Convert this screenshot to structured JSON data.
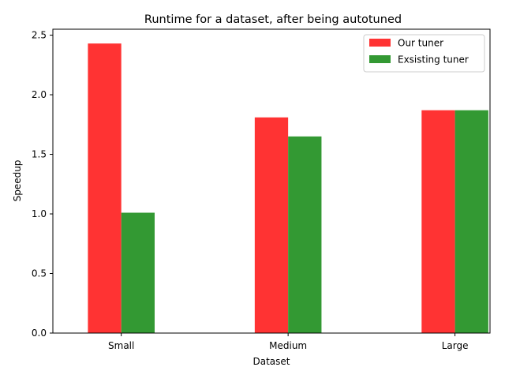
{
  "chart_data": {
    "type": "bar",
    "title": "Runtime for a dataset, after being autotuned",
    "xlabel": "Dataset",
    "ylabel": "Speedup",
    "categories": [
      "Small",
      "Medium",
      "Large"
    ],
    "series": [
      {
        "name": "Our tuner",
        "values": [
          2.43,
          1.81,
          1.87
        ],
        "color": "#ff3333"
      },
      {
        "name": "Exsisting tuner",
        "values": [
          1.01,
          1.65,
          1.87
        ],
        "color": "#339933"
      }
    ],
    "ylim": [
      0,
      2.55
    ],
    "yticks": [
      0.0,
      0.5,
      1.0,
      1.5,
      2.0,
      2.5
    ],
    "ytick_labels": [
      "0.0",
      "0.5",
      "1.0",
      "1.5",
      "2.0",
      "2.5"
    ],
    "grid": false,
    "legend_position": "top-right"
  }
}
